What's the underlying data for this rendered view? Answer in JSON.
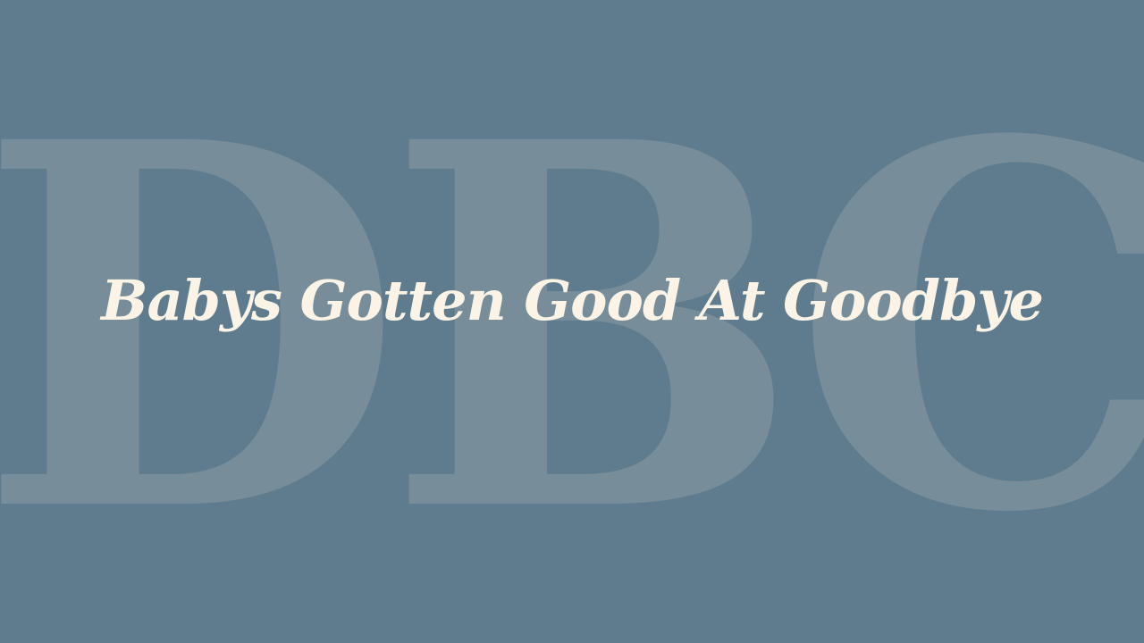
{
  "slide": {
    "background_color": "#5f7c8e",
    "watermark_text": "DBC",
    "watermark_color": "#778d9a",
    "title": "Babys Gotten Good At Goodbye",
    "title_color": "#fbf4e6"
  }
}
